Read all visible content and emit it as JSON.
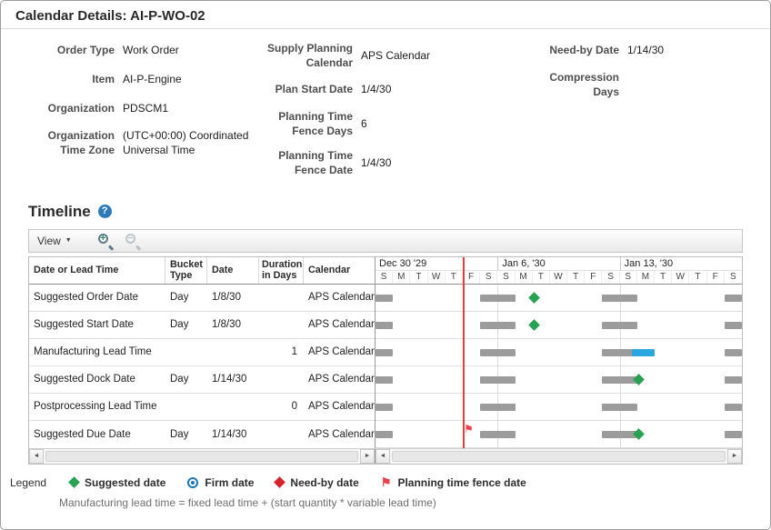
{
  "page": {
    "title": "Calendar Details: AI-P-WO-02"
  },
  "details": {
    "col1": [
      {
        "label": "Order Type",
        "value": "Work Order"
      },
      {
        "label": "Item",
        "value": "AI-P-Engine"
      },
      {
        "label": "Organization",
        "value": "PDSCM1"
      },
      {
        "label": "Organization Time Zone",
        "value": "(UTC+00:00) Coordinated Universal Time"
      }
    ],
    "col2": [
      {
        "label": "Supply Planning Calendar",
        "value": "APS Calendar"
      },
      {
        "label": "Plan Start Date",
        "value": "1/4/30"
      },
      {
        "label": "Planning Time Fence Days",
        "value": "6"
      },
      {
        "label": "Planning Time Fence Date",
        "value": "1/4/30"
      }
    ],
    "col3": [
      {
        "label": "Need-by Date",
        "value": "1/14/30"
      },
      {
        "label": "Compression Days",
        "value": ""
      }
    ]
  },
  "timeline": {
    "heading": "Timeline",
    "toolbar": {
      "view_label": "View"
    },
    "table": {
      "headers": [
        "Date or Lead Time",
        "Bucket Type",
        "Date",
        "Duration in Days",
        "Calendar"
      ],
      "rows": [
        {
          "name": "Suggested Order Date",
          "bucket": "Day",
          "date": "1/8/30",
          "duration": "",
          "calendar": "APS Calendar"
        },
        {
          "name": "Suggested Start Date",
          "bucket": "Day",
          "date": "1/8/30",
          "duration": "",
          "calendar": "APS Calendar"
        },
        {
          "name": "Manufacturing Lead Time",
          "bucket": "",
          "date": "",
          "duration": "1",
          "calendar": "APS Calendar"
        },
        {
          "name": "Suggested Dock Date",
          "bucket": "Day",
          "date": "1/14/30",
          "duration": "",
          "calendar": "APS Calendar"
        },
        {
          "name": "Postprocessing Lead Time",
          "bucket": "",
          "date": "",
          "duration": "0",
          "calendar": "APS Calendar"
        },
        {
          "name": "Suggested Due Date",
          "bucket": "Day",
          "date": "1/14/30",
          "duration": "",
          "calendar": "APS Calendar"
        }
      ]
    }
  },
  "chart_data": {
    "type": "gantt",
    "title": "Timeline",
    "start_date": "12/30/29",
    "total_days": 21,
    "weeks": [
      {
        "label": "Dec 30 '29",
        "day_letters": [
          "S",
          "M",
          "T",
          "W",
          "T",
          "F",
          "S"
        ]
      },
      {
        "label": "Jan 6, '30",
        "day_letters": [
          "S",
          "M",
          "T",
          "W",
          "T",
          "F",
          "S"
        ]
      },
      {
        "label": "Jan 13, '30",
        "day_letters": [
          "S",
          "M",
          "T",
          "W",
          "T",
          "F",
          "S"
        ]
      }
    ],
    "fence_line": {
      "date": "1/4/30",
      "day_index": 5
    },
    "nonworking_day_spans": [
      [
        0,
        1
      ],
      [
        6,
        8
      ],
      [
        13,
        15
      ],
      [
        20,
        21
      ]
    ],
    "rows": [
      {
        "name": "Suggested Order Date",
        "markers": [
          {
            "type": "suggested",
            "date": "1/8/30",
            "day": 9
          }
        ]
      },
      {
        "name": "Suggested Start Date",
        "markers": [
          {
            "type": "suggested",
            "date": "1/8/30",
            "day": 9
          }
        ]
      },
      {
        "name": "Manufacturing Lead Time",
        "bars": [
          {
            "start": 14.7,
            "end": 16,
            "duration_days": 1
          }
        ]
      },
      {
        "name": "Suggested Dock Date",
        "markers": [
          {
            "type": "suggested",
            "date": "1/14/30",
            "day": 15
          }
        ]
      },
      {
        "name": "Postprocessing Lead Time",
        "markers": []
      },
      {
        "name": "Suggested Due Date",
        "markers": [
          {
            "type": "fence-flag",
            "date": "1/4/30",
            "day": 5
          },
          {
            "type": "suggested",
            "date": "1/14/30",
            "day": 15
          }
        ]
      }
    ],
    "colors": {
      "nonworking_bar": "#9c9c9c",
      "duration_bar": "#2aa7de",
      "suggested_marker": "#28a152",
      "need_by_marker": "#d5232b",
      "fence_line": "#e23c3c",
      "fence_flag": "#e8434c",
      "firm_marker": "#1d76b5"
    }
  },
  "legend": {
    "label": "Legend",
    "items": [
      {
        "label": "Suggested date"
      },
      {
        "label": "Firm date"
      },
      {
        "label": "Need-by date"
      },
      {
        "label": "Planning time fence date"
      }
    ]
  },
  "note": "Manufacturing lead time = fixed lead time + (start quantity * variable lead time)",
  "icons": {
    "help": "?",
    "view_caret": "▼",
    "zoom_in": "+",
    "zoom_out": "−",
    "flag": "⚑",
    "scroll_left": "◄",
    "scroll_right": "►"
  }
}
